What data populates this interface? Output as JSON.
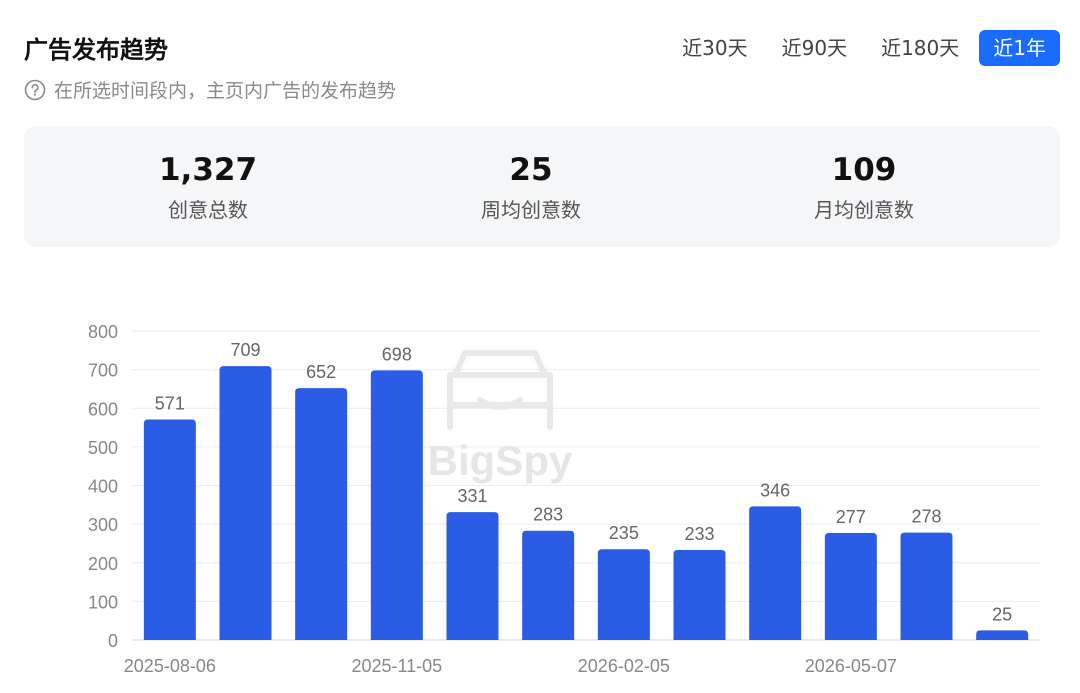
{
  "header": {
    "title": "广告发布趋势",
    "subtitle": "在所选时间段内，主页内广告的发布趋势"
  },
  "tabs": [
    {
      "label": "近30天",
      "active": false
    },
    {
      "label": "近90天",
      "active": false
    },
    {
      "label": "近180天",
      "active": false
    },
    {
      "label": "近1年",
      "active": true
    }
  ],
  "summary": {
    "total": {
      "value": "1,327",
      "label": "创意总数"
    },
    "weekly": {
      "value": "25",
      "label": "周均创意数"
    },
    "monthly": {
      "value": "109",
      "label": "月均创意数"
    }
  },
  "watermark": "BigSpy",
  "chart_data": {
    "type": "bar",
    "bar_color": "#2b5ce6",
    "ylim": [
      0,
      800
    ],
    "yticks": [
      0,
      100,
      200,
      300,
      400,
      500,
      600,
      700,
      800
    ],
    "xtick_labels": [
      "2025-08-06",
      "2025-11-05",
      "2026-02-05",
      "2026-05-07"
    ],
    "xtick_positions": [
      0,
      3,
      6,
      9
    ],
    "values": [
      571,
      709,
      652,
      698,
      331,
      283,
      235,
      233,
      346,
      277,
      278,
      25
    ],
    "grid": true
  }
}
